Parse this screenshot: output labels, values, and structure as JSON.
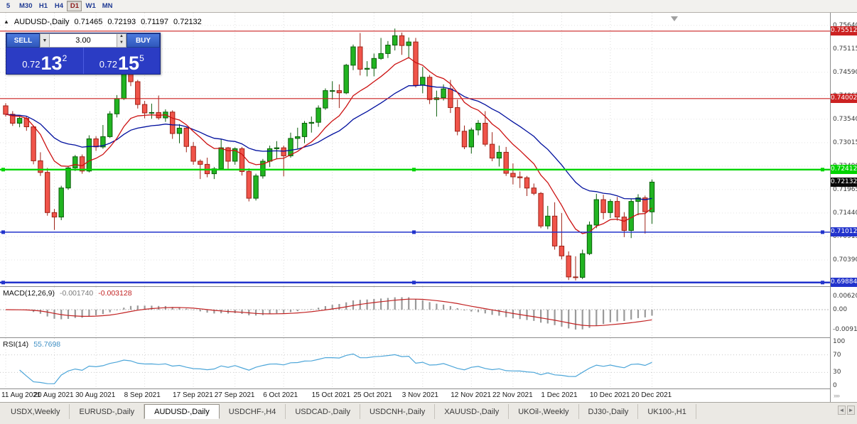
{
  "toolbar": {
    "timeframes": [
      {
        "label": "5",
        "active": false
      },
      {
        "label": "M30",
        "active": false
      },
      {
        "label": "H1",
        "active": false
      },
      {
        "label": "H4",
        "active": false
      },
      {
        "label": "D1",
        "active": true
      },
      {
        "label": "W1",
        "active": false
      },
      {
        "label": "MN",
        "active": false
      }
    ]
  },
  "chart": {
    "header": {
      "collapse_icon": "▲",
      "symbol": "AUDUSD-,Daily",
      "open": "0.71465",
      "high": "0.72193",
      "low": "0.71197",
      "close": "0.72132"
    },
    "trade_panel": {
      "sell_label": "SELL",
      "buy_label": "BUY",
      "volume": "3.00",
      "dropdown_icon": "▼",
      "spin_up": "▲",
      "spin_down": "▼",
      "sell_price_small": "0.72",
      "sell_price_big": "13",
      "sell_price_sup": "2",
      "buy_price_small": "0.72",
      "buy_price_big": "15",
      "buy_price_sup": "5"
    },
    "colors": {
      "up": "#21b421",
      "up_border": "#0b5e0b",
      "down": "#f0544a",
      "down_border": "#9e2217",
      "ma_fast": "#cc1111",
      "ma_slow": "#000f9e",
      "macd_hist": "#9a9a9a",
      "macd_signal": "#c22222",
      "rsi_line": "#4da6d9"
    },
    "y_ticks": [
      "0.75640",
      "0.75115",
      "0.74590",
      "0.74065",
      "0.73540",
      "0.73015",
      "0.72490",
      "0.71965",
      "0.71440",
      "0.70915",
      "0.70390"
    ],
    "x_labels": [
      {
        "idx": 0,
        "label": "11 Aug 2021"
      },
      {
        "idx": 7,
        "label": "20 Aug 2021"
      },
      {
        "idx": 13,
        "label": "30 Aug 2021"
      },
      {
        "idx": 20,
        "label": "8 Sep 2021"
      },
      {
        "idx": 27,
        "label": "17 Sep 2021"
      },
      {
        "idx": 33,
        "label": "27 Sep 2021"
      },
      {
        "idx": 40,
        "label": "6 Oct 2021"
      },
      {
        "idx": 47,
        "label": "15 Oct 2021"
      },
      {
        "idx": 53,
        "label": "25 Oct 2021"
      },
      {
        "idx": 60,
        "label": "3 Nov 2021"
      },
      {
        "idx": 67,
        "label": "12 Nov 2021"
      },
      {
        "idx": 73,
        "label": "22 Nov 2021"
      },
      {
        "idx": 80,
        "label": "1 Dec 2021"
      },
      {
        "idx": 87,
        "label": "10 Dec 2021"
      },
      {
        "idx": 93,
        "label": "20 Dec 2021"
      }
    ],
    "hlines": [
      {
        "price": 0.75512,
        "label": "0.75512",
        "color": "#cc2222",
        "width": 1.2,
        "handles": false
      },
      {
        "price": 0.74002,
        "label": "0.74002",
        "color": "#cc2222",
        "width": 1.2,
        "handles": false
      },
      {
        "price": 0.72412,
        "label": "0.72412",
        "color": "#00d400",
        "width": 2.4,
        "handles": true
      },
      {
        "price": 0.71012,
        "label": "0.71012",
        "color": "#2233cc",
        "width": 1.5,
        "handles": true
      },
      {
        "price": 0.69884,
        "label": "0.69884",
        "color": "#2233cc",
        "width": 2.5,
        "handles": true
      }
    ],
    "current_price": {
      "label": "0.72132",
      "bg": "#0a0a0a"
    },
    "candles": [
      [
        0.7384,
        0.739,
        0.736,
        0.7365
      ],
      [
        0.7365,
        0.7372,
        0.7339,
        0.7345
      ],
      [
        0.7345,
        0.7361,
        0.7336,
        0.7356
      ],
      [
        0.7356,
        0.736,
        0.7328,
        0.7337
      ],
      [
        0.7337,
        0.734,
        0.7253,
        0.7261
      ],
      [
        0.7261,
        0.728,
        0.7227,
        0.7235
      ],
      [
        0.7235,
        0.7245,
        0.7138,
        0.7145
      ],
      [
        0.7145,
        0.7153,
        0.7106,
        0.7135
      ],
      [
        0.7135,
        0.7205,
        0.7128,
        0.72
      ],
      [
        0.72,
        0.7249,
        0.7196,
        0.7245
      ],
      [
        0.7245,
        0.7274,
        0.7238,
        0.727
      ],
      [
        0.727,
        0.7275,
        0.7232,
        0.7238
      ],
      [
        0.7238,
        0.7318,
        0.7235,
        0.731
      ],
      [
        0.731,
        0.7316,
        0.7283,
        0.7292
      ],
      [
        0.7292,
        0.7341,
        0.7288,
        0.7315
      ],
      [
        0.7315,
        0.7372,
        0.7312,
        0.7366
      ],
      [
        0.7366,
        0.7408,
        0.7358,
        0.74
      ],
      [
        0.74,
        0.7478,
        0.7397,
        0.7455
      ],
      [
        0.7455,
        0.7468,
        0.7428,
        0.7438
      ],
      [
        0.7438,
        0.7442,
        0.7378,
        0.7387
      ],
      [
        0.7387,
        0.7395,
        0.7356,
        0.7368
      ],
      [
        0.7368,
        0.7389,
        0.7355,
        0.7369
      ],
      [
        0.7369,
        0.7407,
        0.7353,
        0.7357
      ],
      [
        0.7357,
        0.7376,
        0.7348,
        0.737
      ],
      [
        0.737,
        0.7374,
        0.731,
        0.7322
      ],
      [
        0.7322,
        0.7343,
        0.73,
        0.7334
      ],
      [
        0.7334,
        0.7336,
        0.728,
        0.7293
      ],
      [
        0.7293,
        0.7303,
        0.7252,
        0.726
      ],
      [
        0.726,
        0.7264,
        0.722,
        0.7253
      ],
      [
        0.7253,
        0.7268,
        0.7224,
        0.7232
      ],
      [
        0.7232,
        0.7247,
        0.722,
        0.7243
      ],
      [
        0.7243,
        0.731,
        0.724,
        0.729
      ],
      [
        0.729,
        0.7292,
        0.7243,
        0.726
      ],
      [
        0.726,
        0.7291,
        0.7252,
        0.7288
      ],
      [
        0.7288,
        0.7292,
        0.7228,
        0.7237
      ],
      [
        0.7237,
        0.7244,
        0.717,
        0.7177
      ],
      [
        0.7177,
        0.7232,
        0.7172,
        0.7227
      ],
      [
        0.7227,
        0.7265,
        0.7221,
        0.726
      ],
      [
        0.726,
        0.7295,
        0.7247,
        0.7288
      ],
      [
        0.7288,
        0.7305,
        0.7265,
        0.729
      ],
      [
        0.729,
        0.7295,
        0.7226,
        0.7272
      ],
      [
        0.7272,
        0.7324,
        0.7268,
        0.7311
      ],
      [
        0.7311,
        0.7335,
        0.7288,
        0.7315
      ],
      [
        0.7315,
        0.735,
        0.73,
        0.7345
      ],
      [
        0.7345,
        0.736,
        0.7324,
        0.7347
      ],
      [
        0.7347,
        0.7385,
        0.7337,
        0.7379
      ],
      [
        0.7379,
        0.7423,
        0.7375,
        0.7418
      ],
      [
        0.7418,
        0.7439,
        0.7398,
        0.7418
      ],
      [
        0.7418,
        0.7432,
        0.7379,
        0.7413
      ],
      [
        0.7413,
        0.7478,
        0.741,
        0.7475
      ],
      [
        0.7475,
        0.7521,
        0.7464,
        0.7516
      ],
      [
        0.7516,
        0.7547,
        0.7452,
        0.7466
      ],
      [
        0.7466,
        0.7484,
        0.745,
        0.7468
      ],
      [
        0.7468,
        0.7501,
        0.745,
        0.749
      ],
      [
        0.749,
        0.7536,
        0.7487,
        0.7501
      ],
      [
        0.7501,
        0.7529,
        0.7491,
        0.752
      ],
      [
        0.752,
        0.7557,
        0.7508,
        0.7541
      ],
      [
        0.7541,
        0.7548,
        0.7498,
        0.7519
      ],
      [
        0.7519,
        0.7537,
        0.749,
        0.7527
      ],
      [
        0.7527,
        0.7536,
        0.7425,
        0.743
      ],
      [
        0.743,
        0.7471,
        0.7412,
        0.7448
      ],
      [
        0.7448,
        0.7453,
        0.7388,
        0.7398
      ],
      [
        0.7398,
        0.7418,
        0.736,
        0.7402
      ],
      [
        0.7402,
        0.7432,
        0.7396,
        0.7422
      ],
      [
        0.7422,
        0.7442,
        0.7368,
        0.738
      ],
      [
        0.738,
        0.7398,
        0.7318,
        0.7327
      ],
      [
        0.7327,
        0.734,
        0.7287,
        0.7292
      ],
      [
        0.7292,
        0.7335,
        0.7277,
        0.733
      ],
      [
        0.733,
        0.7352,
        0.7318,
        0.7345
      ],
      [
        0.7345,
        0.7372,
        0.7293,
        0.7298
      ],
      [
        0.7298,
        0.7325,
        0.726,
        0.7267
      ],
      [
        0.7267,
        0.7295,
        0.7248,
        0.728
      ],
      [
        0.728,
        0.7292,
        0.7227,
        0.7233
      ],
      [
        0.7233,
        0.7255,
        0.7208,
        0.7225
      ],
      [
        0.7225,
        0.7237,
        0.72,
        0.7223
      ],
      [
        0.7223,
        0.7227,
        0.7182,
        0.72
      ],
      [
        0.72,
        0.721,
        0.7184,
        0.7188
      ],
      [
        0.7188,
        0.7191,
        0.711,
        0.7115
      ],
      [
        0.7115,
        0.716,
        0.7108,
        0.7137
      ],
      [
        0.7137,
        0.7168,
        0.7062,
        0.707
      ],
      [
        0.707,
        0.7144,
        0.704,
        0.7048
      ],
      [
        0.7048,
        0.7058,
        0.6994,
        0.7001
      ],
      [
        0.7001,
        0.7047,
        0.6993,
        0.7
      ],
      [
        0.7,
        0.7062,
        0.6996,
        0.7053
      ],
      [
        0.7053,
        0.7125,
        0.705,
        0.7117
      ],
      [
        0.7117,
        0.7187,
        0.711,
        0.7174
      ],
      [
        0.7174,
        0.7185,
        0.713,
        0.7145
      ],
      [
        0.7145,
        0.7175,
        0.7133,
        0.717
      ],
      [
        0.717,
        0.718,
        0.7127,
        0.7135
      ],
      [
        0.7135,
        0.7146,
        0.709,
        0.7105
      ],
      [
        0.7105,
        0.7175,
        0.7088,
        0.717
      ],
      [
        0.717,
        0.7186,
        0.7139,
        0.7178
      ],
      [
        0.7178,
        0.7183,
        0.7098,
        0.7147
      ],
      [
        0.71465,
        0.72193,
        0.71197,
        0.72132
      ]
    ],
    "macd": {
      "header_label": "MACD(12,26,9)",
      "main_value": "-0.001740",
      "signal_value": "-0.003128",
      "axis": [
        {
          "label": "0.006201",
          "value": 0.006201
        },
        {
          "label": "0.00",
          "value": 0
        },
        {
          "label": "-0.00919",
          "value": -0.00919
        }
      ]
    },
    "rsi": {
      "header_label": "RSI(14)",
      "value": "55.7698",
      "period": 14,
      "levels": [
        70,
        30
      ],
      "axis": [
        {
          "label": "100",
          "value": 100
        },
        {
          "label": "70",
          "value": 70
        },
        {
          "label": "30",
          "value": 30
        },
        {
          "label": "0",
          "value": 0
        }
      ]
    }
  },
  "tabs": {
    "scroll_left": "◄",
    "scroll_right": "►",
    "items": [
      {
        "label": "USDX,Weekly",
        "active": false
      },
      {
        "label": "EURUSD-,Daily",
        "active": false
      },
      {
        "label": "AUDUSD-,Daily",
        "active": true
      },
      {
        "label": "USDCHF-,H4",
        "active": false
      },
      {
        "label": "USDCAD-,Daily",
        "active": false
      },
      {
        "label": "USDCNH-,Daily",
        "active": false
      },
      {
        "label": "XAUUSD-,Daily",
        "active": false
      },
      {
        "label": "UKOil-,Weekly",
        "active": false
      },
      {
        "label": "DJ30-,Daily",
        "active": false
      },
      {
        "label": "UK100-,H1",
        "active": false
      }
    ]
  }
}
